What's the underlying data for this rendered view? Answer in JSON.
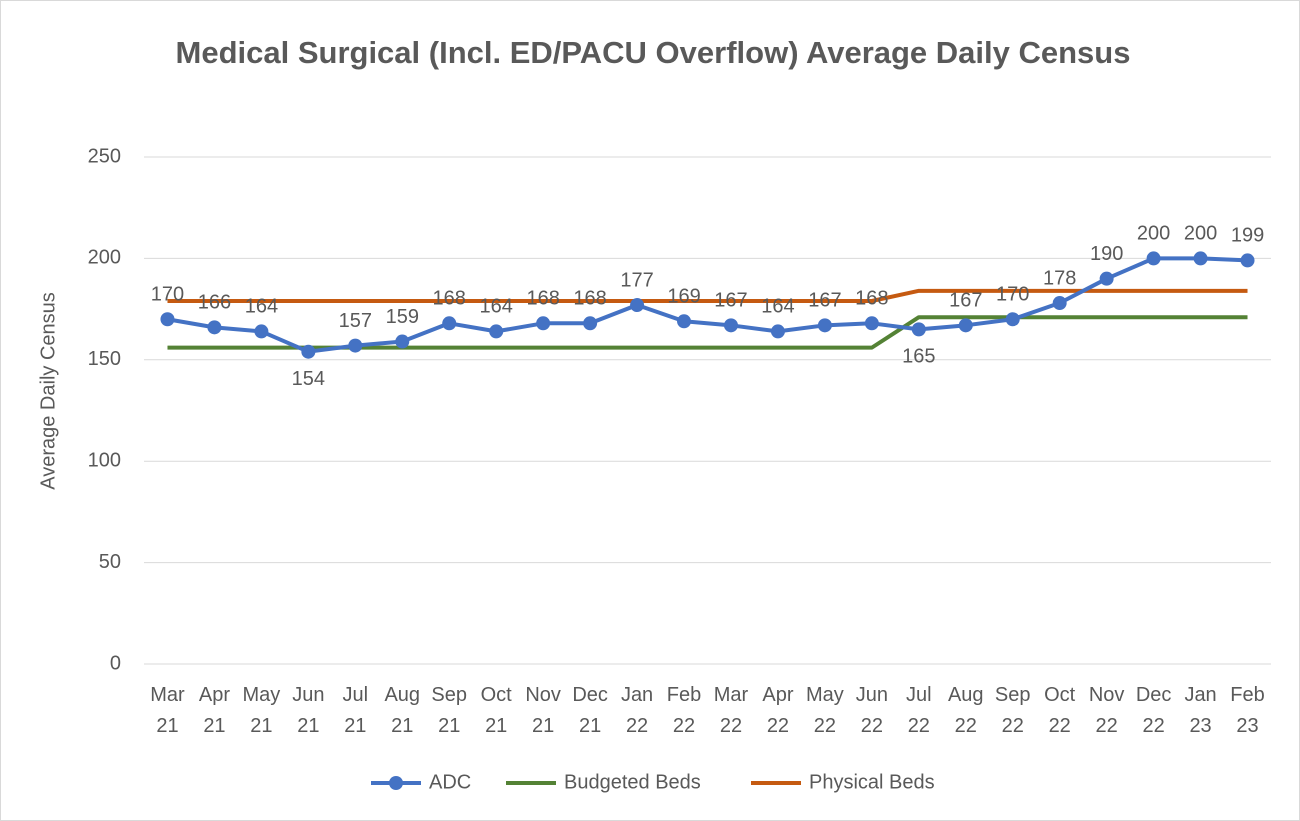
{
  "chart_data": {
    "type": "line",
    "title": "Medical Surgical (Incl. ED/PACU Overflow) Average Daily Census",
    "y_label": "Average Daily Census",
    "categories": [
      "Mar 21",
      "Apr 21",
      "May 21",
      "Jun 21",
      "Jul 21",
      "Aug 21",
      "Sep 21",
      "Oct 21",
      "Nov 21",
      "Dec 21",
      "Jan 22",
      "Feb 22",
      "Mar 22",
      "Apr 22",
      "May 22",
      "Jun 22",
      "Jul 22",
      "Aug 22",
      "Sep 22",
      "Oct 22",
      "Nov 22",
      "Dec 22",
      "Jan 23",
      "Feb 23"
    ],
    "series": [
      {
        "name": "ADC",
        "color": "#4472c4",
        "markers": true,
        "data_labels": true,
        "values": [
          170,
          166,
          164,
          154,
          157,
          159,
          168,
          164,
          168,
          168,
          177,
          169,
          167,
          164,
          167,
          168,
          165,
          167,
          170,
          178,
          190,
          200,
          200,
          199
        ]
      },
      {
        "name": "Budgeted Beds",
        "color": "#548235",
        "values": [
          156,
          156,
          156,
          156,
          156,
          156,
          156,
          156,
          156,
          156,
          156,
          156,
          156,
          156,
          156,
          156,
          171,
          171,
          171,
          171,
          171,
          171,
          171,
          171
        ]
      },
      {
        "name": "Physical Beds",
        "color": "#c55a11",
        "values": [
          179,
          179,
          179,
          179,
          179,
          179,
          179,
          179,
          179,
          179,
          179,
          179,
          179,
          179,
          179,
          179,
          184,
          184,
          184,
          184,
          184,
          184,
          184,
          184
        ]
      }
    ],
    "ylim": [
      0,
      250
    ],
    "yticks": [
      0,
      50,
      100,
      150,
      200,
      250
    ],
    "grid": true,
    "legend": "bottom"
  }
}
